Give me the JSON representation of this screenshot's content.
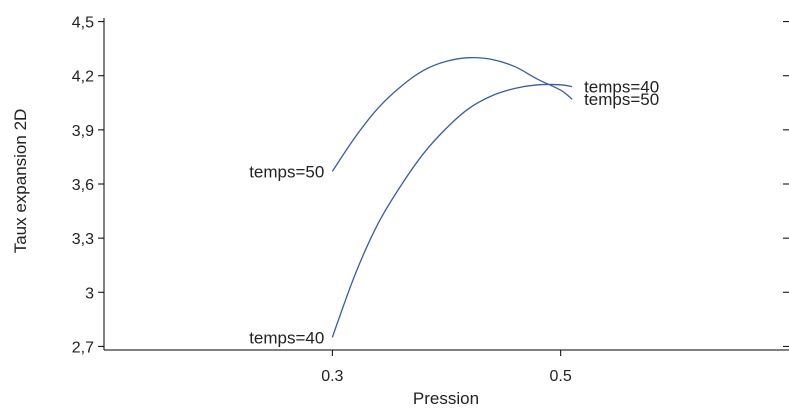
{
  "chart_data": {
    "type": "line",
    "xlabel": "Pression",
    "ylabel": "Taux expansion 2D",
    "xlim": [
      0.1,
      0.7
    ],
    "ylim": [
      2.68,
      4.52
    ],
    "x_ticks": [
      {
        "value": 0.3,
        "label": "0.3"
      },
      {
        "value": 0.5,
        "label": "0.5"
      }
    ],
    "y_ticks": [
      {
        "value": 2.7,
        "label": "2,7"
      },
      {
        "value": 3.0,
        "label": "3"
      },
      {
        "value": 3.3,
        "label": "3,3"
      },
      {
        "value": 3.6,
        "label": "3,6"
      },
      {
        "value": 3.9,
        "label": "3,9"
      },
      {
        "value": 4.2,
        "label": "4,2"
      },
      {
        "value": 4.5,
        "label": "4,5"
      }
    ],
    "grid": false,
    "series": [
      {
        "name": "temps=50",
        "color": "#3a5ba8",
        "x": [
          0.3,
          0.32,
          0.34,
          0.36,
          0.38,
          0.4,
          0.42,
          0.44,
          0.46,
          0.48,
          0.5,
          0.51
        ],
        "y": [
          3.67,
          3.86,
          4.02,
          4.14,
          4.23,
          4.28,
          4.3,
          4.29,
          4.25,
          4.18,
          4.12,
          4.07
        ]
      },
      {
        "name": "temps=40",
        "color": "#3a5ba8",
        "x": [
          0.3,
          0.32,
          0.34,
          0.36,
          0.38,
          0.4,
          0.42,
          0.44,
          0.46,
          0.48,
          0.5,
          0.51
        ],
        "y": [
          2.75,
          3.1,
          3.38,
          3.59,
          3.77,
          3.91,
          4.02,
          4.09,
          4.13,
          4.15,
          4.15,
          4.14
        ]
      }
    ],
    "labels": [
      {
        "series": 0,
        "side": "start",
        "text": "temps=50"
      },
      {
        "series": 1,
        "side": "start",
        "text": "temps=40"
      },
      {
        "series": 1,
        "side": "end",
        "text": "temps=40"
      },
      {
        "series": 0,
        "side": "end",
        "text": "temps=50"
      }
    ]
  }
}
